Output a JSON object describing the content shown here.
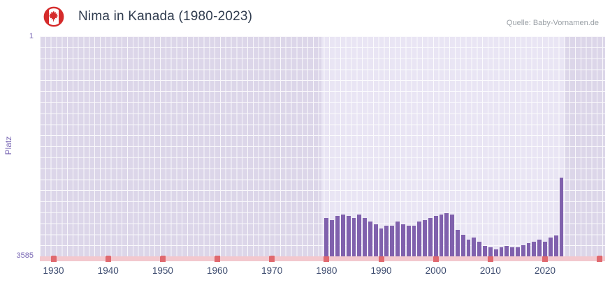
{
  "header": {
    "title": "Nima in Kanada (1980-2023)",
    "source": "Quelle: Baby-Vornamen.de",
    "flag": "canada-flag-icon"
  },
  "chart_data": {
    "type": "bar",
    "title": "Nima in Kanada (1980-2023)",
    "xlabel": "",
    "ylabel": "Platz",
    "y_axis": {
      "min": 1,
      "max": 3585,
      "inverted": true,
      "top_label": "1",
      "bottom_label": "3585"
    },
    "x_axis": {
      "range": [
        1927.5,
        2031
      ],
      "tick_labels": [
        "1930",
        "1940",
        "1950",
        "1960",
        "1970",
        "1980",
        "1990",
        "2000",
        "2010",
        "2020"
      ],
      "tick_label_years": [
        1930,
        1940,
        1950,
        1960,
        1970,
        1980,
        1990,
        2000,
        2010,
        2020
      ],
      "tick_marker_years": [
        1930,
        1940,
        1950,
        1960,
        1970,
        1980,
        1990,
        2000,
        2010,
        2020,
        2030
      ]
    },
    "data_band_years": [
      1979,
      2023.7
    ],
    "years": [
      1980,
      1981,
      1982,
      1983,
      1984,
      1985,
      1986,
      1987,
      1988,
      1989,
      1990,
      1991,
      1992,
      1993,
      1994,
      1995,
      1996,
      1997,
      1998,
      1999,
      2000,
      2001,
      2002,
      2003,
      2004,
      2005,
      2006,
      2007,
      2008,
      2009,
      2010,
      2011,
      2012,
      2013,
      2014,
      2015,
      2016,
      2017,
      2018,
      2019,
      2020,
      2021,
      2022,
      2023
    ],
    "values": [
      2960,
      2995,
      2930,
      2905,
      2930,
      2960,
      2905,
      2960,
      3020,
      3065,
      3130,
      3090,
      3085,
      3020,
      3065,
      3085,
      3090,
      3015,
      2995,
      2960,
      2930,
      2905,
      2880,
      2905,
      3155,
      3235,
      3310,
      3280,
      3345,
      3415,
      3435,
      3470,
      3435,
      3415,
      3435,
      3435,
      3405,
      3370,
      3345,
      3310,
      3345,
      3280,
      3250,
      2305
    ],
    "legend": null,
    "grid": true,
    "colors": {
      "bar": "#8061ad",
      "plot_bg": "#dcd6e9",
      "band_bg": "#e9e5f4",
      "grid": "#ffffff",
      "baseline": "#f3c8ce",
      "tick_marker": "#e0696f",
      "axis_text": "#7a68b5",
      "x_tick_text": "#3b4a6e",
      "title_text": "#303c4f",
      "source_text": "#9aa0a6",
      "flag_red": "#d52b2b"
    }
  }
}
